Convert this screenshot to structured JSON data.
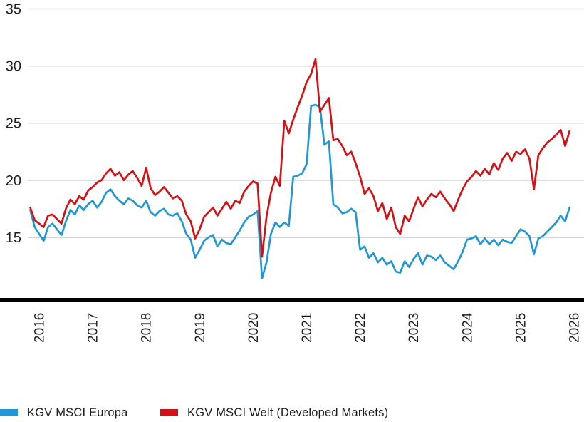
{
  "chart_data": {
    "type": "line",
    "title": "",
    "xlabel": "",
    "ylabel": "",
    "x_start": "2015-11",
    "x_freq": "monthly",
    "xticks": [
      2016,
      2017,
      2018,
      2019,
      2020,
      2021,
      2022,
      2023,
      2024,
      2025,
      2026
    ],
    "yticks": [
      15,
      20,
      25,
      30,
      35
    ],
    "ylim": [
      9.5,
      35.5
    ],
    "grid": "horizontal",
    "legend_position": "bottom",
    "colors": {
      "europa_blue": "#2397d4",
      "welt_red": "#cf1316",
      "gridline": "#ababab",
      "axis": "#000000",
      "text": "#1d1d1b"
    },
    "series": [
      {
        "name": "KGV MSCI Europa",
        "color": "#2397d4",
        "values": [
          17.4,
          15.9,
          15.3,
          14.7,
          15.9,
          16.2,
          15.7,
          15.2,
          16.4,
          17.4,
          17.0,
          17.8,
          17.4,
          17.9,
          18.2,
          17.6,
          18.1,
          18.9,
          19.2,
          18.6,
          18.2,
          17.9,
          18.4,
          18.2,
          17.8,
          17.6,
          18.2,
          17.2,
          16.9,
          17.3,
          17.5,
          17.0,
          16.9,
          17.1,
          16.4,
          15.3,
          14.8,
          13.2,
          13.9,
          14.7,
          15.0,
          15.2,
          14.2,
          14.8,
          14.5,
          14.4,
          15.0,
          15.6,
          16.3,
          16.8,
          17.0,
          17.3,
          11.4,
          12.8,
          15.3,
          16.3,
          15.9,
          16.3,
          16.0,
          20.3,
          20.4,
          20.6,
          21.4,
          26.5,
          26.6,
          26.4,
          23.1,
          23.4,
          17.9,
          17.6,
          17.1,
          17.2,
          17.5,
          17.2,
          13.9,
          14.2,
          13.2,
          13.6,
          12.8,
          13.2,
          12.6,
          12.9,
          12.0,
          11.9,
          12.9,
          12.4,
          13.1,
          13.6,
          12.6,
          13.4,
          13.3,
          13.0,
          13.4,
          12.8,
          12.5,
          12.2,
          12.9,
          13.7,
          14.8,
          14.9,
          15.1,
          14.4,
          14.9,
          14.4,
          14.8,
          14.3,
          14.8,
          14.6,
          14.5,
          15.1,
          15.7,
          15.5,
          15.1,
          13.5,
          14.9,
          15.1,
          15.5,
          15.9,
          16.3,
          16.9,
          16.4,
          17.6
        ]
      },
      {
        "name": "KGV MSCI Welt (Developed Markets)",
        "color": "#cf1316",
        "values": [
          17.6,
          16.5,
          16.2,
          15.9,
          16.9,
          17.0,
          16.6,
          16.2,
          17.5,
          18.3,
          17.9,
          18.6,
          18.3,
          19.1,
          19.4,
          19.8,
          20.0,
          20.6,
          21.0,
          20.4,
          20.7,
          20.0,
          20.5,
          20.8,
          20.2,
          19.5,
          21.1,
          19.3,
          18.7,
          19.0,
          19.4,
          18.9,
          18.4,
          18.6,
          18.2,
          17.0,
          16.4,
          14.9,
          15.7,
          16.8,
          17.2,
          17.6,
          16.9,
          17.5,
          18.1,
          17.5,
          18.2,
          18.0,
          19.0,
          19.5,
          19.9,
          19.7,
          13.3,
          16.8,
          18.9,
          20.3,
          19.5,
          25.2,
          24.1,
          25.3,
          26.4,
          27.4,
          28.6,
          29.3,
          30.6,
          26.0,
          26.6,
          27.2,
          23.5,
          23.6,
          23.0,
          22.2,
          22.5,
          21.5,
          20.3,
          18.8,
          19.3,
          18.6,
          17.3,
          18.0,
          16.6,
          17.6,
          15.9,
          15.3,
          16.9,
          16.4,
          17.5,
          18.5,
          17.7,
          18.3,
          18.8,
          18.5,
          19.0,
          18.4,
          17.9,
          17.3,
          18.3,
          19.2,
          19.9,
          20.3,
          20.8,
          20.4,
          21.0,
          20.5,
          21.5,
          20.9,
          21.9,
          22.4,
          21.7,
          22.5,
          22.3,
          22.7,
          21.9,
          19.2,
          22.2,
          22.8,
          23.3,
          23.6,
          24.0,
          24.4,
          23.0,
          24.3
        ]
      }
    ]
  },
  "legend": {
    "items": [
      {
        "label": "KGV MSCI Europa",
        "color": "#2397d4"
      },
      {
        "label": "KGV MSCI Welt (Developed Markets)",
        "color": "#cf1316"
      }
    ]
  }
}
